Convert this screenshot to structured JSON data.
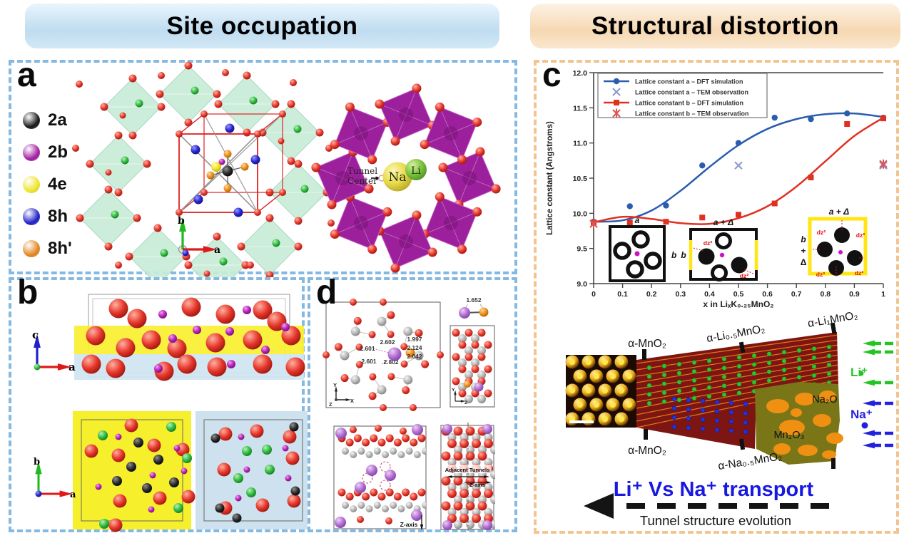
{
  "headers": {
    "left": "Site occupation",
    "right": "Structural distortion"
  },
  "panel_a": {
    "label": "a",
    "legend": [
      {
        "name": "2a",
        "color": "#151515"
      },
      {
        "name": "2b",
        "color": "#a21ca2"
      },
      {
        "name": "4e",
        "color": "#ede428"
      },
      {
        "name": "8h",
        "color": "#1d1dc9"
      },
      {
        "name": "8h'",
        "color": "#e2841c"
      }
    ],
    "tunnel_line1": "Tunnel",
    "tunnel_line2": "Center",
    "na_label": "Na",
    "li_label": "Li",
    "axis_up": "b",
    "axis_right": "a"
  },
  "panel_b": {
    "label": "b",
    "axis_top_up": "c",
    "axis_top_right": "a",
    "axis_bottom_up": "b",
    "axis_bottom_right": "a"
  },
  "panel_d": {
    "label": "d",
    "bonds": [
      "2.601",
      "2.602",
      "1.997",
      "2.124",
      "2.042",
      "2.601",
      "2.802"
    ],
    "pair_bond": "1.652",
    "z_axis": "Z-axis",
    "adjacent_tunnels": "Adjacent Tunnels",
    "axis_x": "X",
    "axis_y": "Y",
    "axis_z": "Z"
  },
  "panel_c": {
    "label": "c",
    "insets": [
      {
        "top": "a",
        "side": "b"
      },
      {
        "top": "a + Δ",
        "side": "b",
        "dz": "dz²"
      },
      {
        "top": "a + Δ",
        "side_b": "b",
        "side_plus": "+",
        "side_delta": "Δ",
        "dz": "dz²"
      }
    ],
    "schematic": {
      "phase_top_left": "α-MnO₂",
      "phase_top_mid": "α-Li₀.₅MnO₂",
      "phase_top_right": "α-Li₁MnO₂",
      "phase_bottom_left": "α-MnO₂",
      "phase_bottom_mid": "α-Na₀.₅MnO₂",
      "na2o": "Na₂O",
      "mn2o3": "Mn₂O₃",
      "li_ion": "Li⁺",
      "na_ion": "Na⁺",
      "li_color": "#25c425",
      "na_color": "#2222dd",
      "transport_title": "Li⁺ Vs Na⁺ transport",
      "evolution_caption": "Tunnel structure evolution"
    }
  },
  "chart_data": {
    "type": "line",
    "title": "",
    "xlabel": "x in LiₓK₀.₂₅MnO₂",
    "ylabel": "Lattice constant (Angstroms)",
    "xlim": [
      0,
      1
    ],
    "ylim": [
      9.0,
      12.0
    ],
    "xtick_labels": [
      "0",
      "0.1",
      "0.2",
      "0.3",
      "0.4",
      "0.5",
      "0.6",
      "0.7",
      "0.8",
      "0.9",
      "1"
    ],
    "ytick_labels": [
      "9.0",
      "9.5",
      "10.0",
      "10.5",
      "11.0",
      "11.5",
      "12.0"
    ],
    "grid": false,
    "legend_position": "top-left",
    "series": [
      {
        "name": "Lattice constant a – DFT simulation",
        "color": "#2a5caf",
        "marker": "circle",
        "line": true,
        "x": [
          0,
          0.125,
          0.25,
          0.375,
          0.5,
          0.625,
          0.75,
          0.875,
          1
        ],
        "y": [
          9.88,
          10.1,
          10.11,
          10.68,
          11.0,
          11.36,
          11.34,
          11.42,
          11.36
        ],
        "trend_x": [
          0,
          0.1,
          0.2,
          0.3,
          0.4,
          0.5,
          0.6,
          0.7,
          0.8,
          0.9,
          1
        ],
        "trend_y": [
          9.88,
          9.9,
          10.04,
          10.32,
          10.66,
          10.97,
          11.2,
          11.34,
          11.41,
          11.42,
          11.37
        ]
      },
      {
        "name": "Lattice constant a – TEM observation",
        "color": "#8e9cd0",
        "marker": "x",
        "line": false,
        "x": [
          0.5,
          1
        ],
        "y": [
          10.68,
          10.68
        ]
      },
      {
        "name": "Lattice constant b – DFT simulation",
        "color": "#e03020",
        "marker": "square",
        "line": true,
        "x": [
          0,
          0.125,
          0.25,
          0.375,
          0.5,
          0.625,
          0.75,
          0.875,
          1
        ],
        "y": [
          9.87,
          9.87,
          9.88,
          9.94,
          9.98,
          10.14,
          10.51,
          11.27,
          11.35
        ],
        "trend_x": [
          0,
          0.1,
          0.2,
          0.3,
          0.4,
          0.5,
          0.6,
          0.7,
          0.8,
          0.9,
          1
        ],
        "trend_y": [
          9.87,
          9.95,
          9.92,
          9.86,
          9.85,
          9.93,
          10.1,
          10.38,
          10.74,
          11.1,
          11.36
        ]
      },
      {
        "name": "Lattice constant b – TEM observation",
        "color": "#dd5555",
        "marker": "xstar",
        "line": false,
        "x": [
          0,
          1
        ],
        "y": [
          9.85,
          10.7
        ]
      }
    ]
  }
}
